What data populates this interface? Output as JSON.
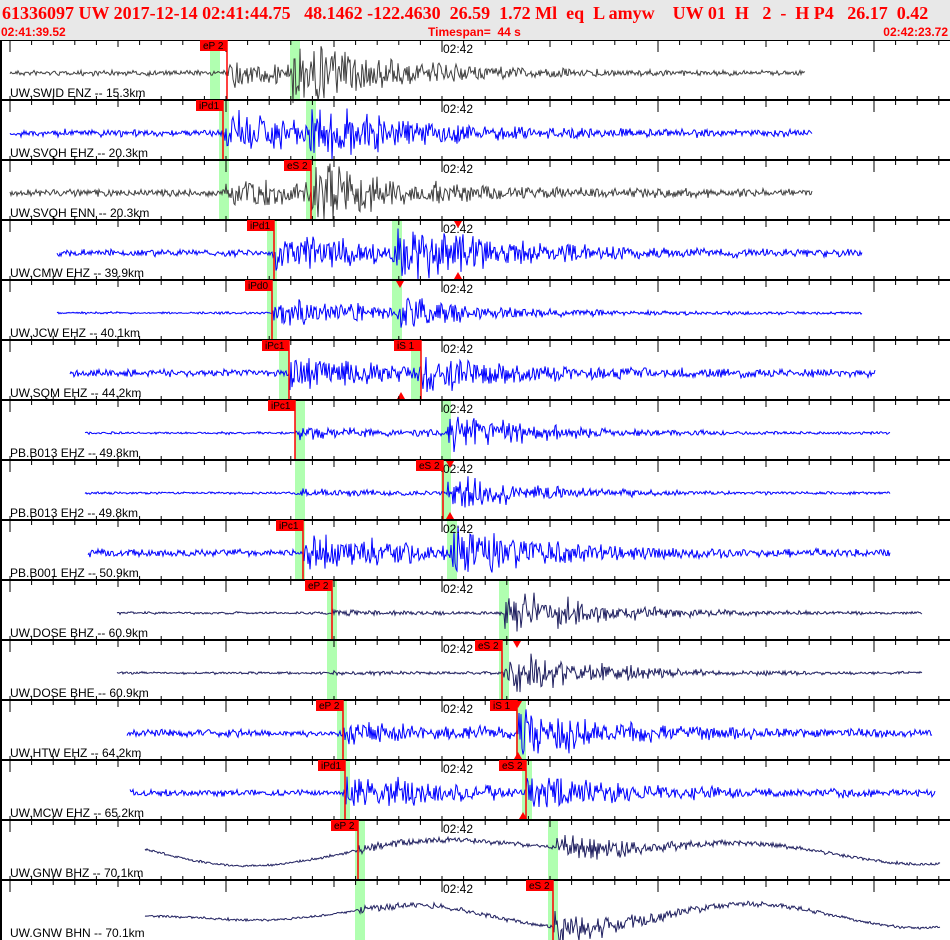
{
  "header": {
    "event_line": "61336097 UW 2017-12-14 02:41:44.75   48.1462 -122.4630  26.59  1.72 Ml  eq  L amyw    UW 01  H   2  -  H P4   26.17  0.42",
    "time_start": "02:41:39.52",
    "timespan": "Timespan=  44 s",
    "time_end": "02:42:23.72"
  },
  "time_tick_label": "02:42",
  "colors": {
    "header_bg": "#e8e8e8",
    "header_text": "#ff0000",
    "pick": "#ff0000",
    "window": "#b0ffb0",
    "blue": "#0000ff",
    "gray": "#404040",
    "navy": "#202060"
  },
  "channels": [
    {
      "label": "UW.SWID ENZ -- 15.3km",
      "trace_color": "gray",
      "picks": [
        "eP 2"
      ]
    },
    {
      "label": "UW.SVQH EHZ -- 20.3km",
      "trace_color": "blue",
      "picks": [
        "iPd1"
      ]
    },
    {
      "label": "UW.SVQH ENN -- 20.3km",
      "trace_color": "gray",
      "picks": [
        "eS 2"
      ]
    },
    {
      "label": "UW.CMW EHZ -- 39.9km",
      "trace_color": "blue",
      "picks": [
        "iPd1"
      ]
    },
    {
      "label": "UW.JCW EHZ -- 40.1km",
      "trace_color": "blue",
      "picks": [
        "iPd0"
      ]
    },
    {
      "label": "UW.SQM EHZ -- 44.2km",
      "trace_color": "blue",
      "picks": [
        "iPc1",
        "iS 1"
      ]
    },
    {
      "label": "PB.B013 EHZ -- 49.8km",
      "trace_color": "blue",
      "picks": [
        "iPc1"
      ]
    },
    {
      "label": "PB.B013 EH2 -- 49.8km",
      "trace_color": "blue",
      "picks": [
        "eS 2"
      ]
    },
    {
      "label": "PB.B001 EHZ -- 50.9km",
      "trace_color": "blue",
      "picks": [
        "iPc1"
      ]
    },
    {
      "label": "UW.DOSE BHZ -- 60.9km",
      "trace_color": "navy",
      "picks": [
        "eP 2"
      ]
    },
    {
      "label": "UW.DOSE BHE -- 60.9km",
      "trace_color": "navy",
      "picks": [
        "eS 2"
      ]
    },
    {
      "label": "UW.HTW EHZ -- 64.2km",
      "trace_color": "blue",
      "picks": [
        "eP 2",
        "iS 1"
      ]
    },
    {
      "label": "UW.MCW EHZ -- 65.2km",
      "trace_color": "blue",
      "picks": [
        "iPd1",
        "eS 2"
      ]
    },
    {
      "label": "UW.GNW BHZ -- 70.1km",
      "trace_color": "navy",
      "picks": [
        "eP 2"
      ]
    },
    {
      "label": "UW.GNW BHN -- 70.1km",
      "trace_color": "navy",
      "picks": [
        "eS 2"
      ]
    }
  ]
}
